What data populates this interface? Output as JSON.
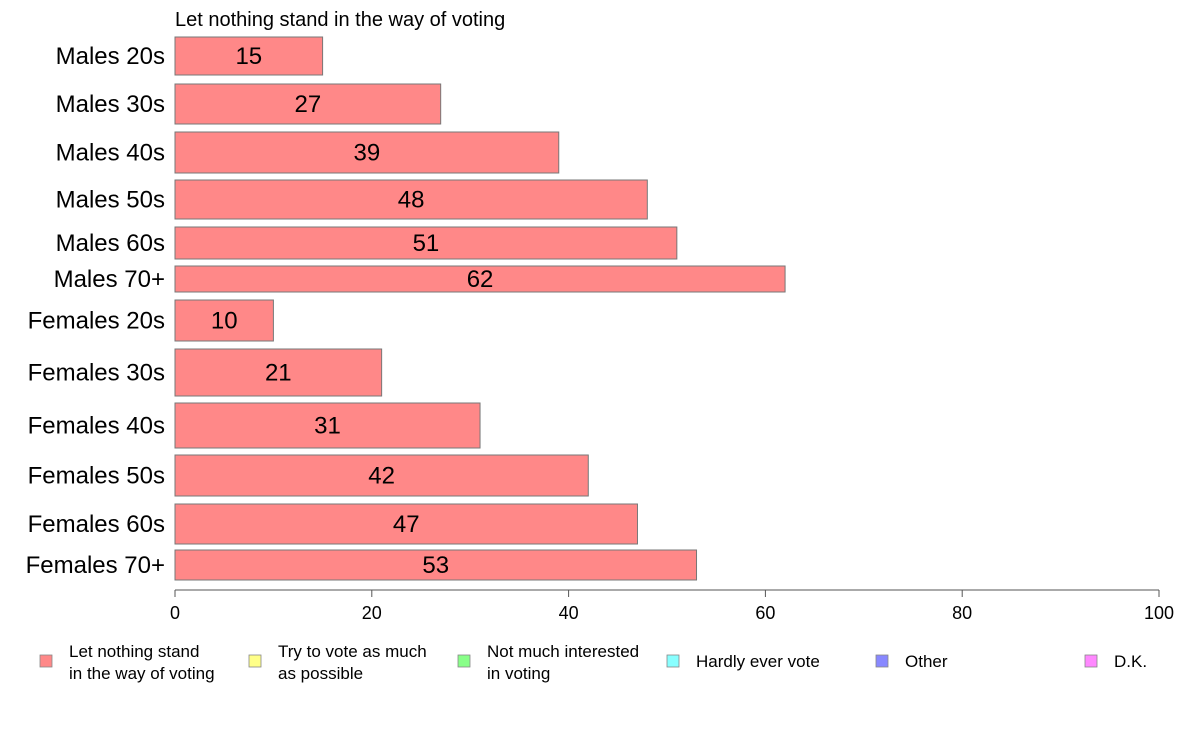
{
  "chart_data": {
    "type": "bar",
    "orientation": "horizontal",
    "title": "Let nothing stand in the way of voting",
    "categories": [
      "Males 20s",
      "Males 30s",
      "Males 40s",
      "Males 50s",
      "Males 60s",
      "Males 70+",
      "Females 20s",
      "Females 30s",
      "Females 40s",
      "Females 50s",
      "Females 60s",
      "Females 70+"
    ],
    "series": [
      {
        "name": "Let nothing stand in the way of voting",
        "color": "#ff8888",
        "values": [
          15,
          27,
          39,
          48,
          51,
          62,
          10,
          21,
          31,
          42,
          47,
          53
        ]
      }
    ],
    "data_labels": [
      "15",
      "27",
      "39",
      "48",
      "51",
      "62",
      "10",
      "21",
      "31",
      "42",
      "47",
      "53"
    ],
    "xlim": [
      0,
      100
    ],
    "xticks": [
      0,
      20,
      40,
      60,
      80,
      100
    ],
    "xtick_labels": [
      "0",
      "20",
      "40",
      "60",
      "80",
      "100"
    ],
    "xlabel": "",
    "ylabel": "",
    "grid": false,
    "legend": {
      "position": "bottom",
      "entries": [
        {
          "lines": [
            "Let nothing stand",
            "in the way of voting"
          ],
          "color": "#ff8888"
        },
        {
          "lines": [
            "Try to vote as much",
            "as possible"
          ],
          "color": "#ffff88"
        },
        {
          "lines": [
            "Not much interested",
            "in voting"
          ],
          "color": "#88ff88"
        },
        {
          "lines": [
            "Hardly ever vote"
          ],
          "color": "#88ffff"
        },
        {
          "lines": [
            "Other"
          ],
          "color": "#8888ff"
        },
        {
          "lines": [
            "D.K."
          ],
          "color": "#ff88ff"
        }
      ]
    }
  }
}
